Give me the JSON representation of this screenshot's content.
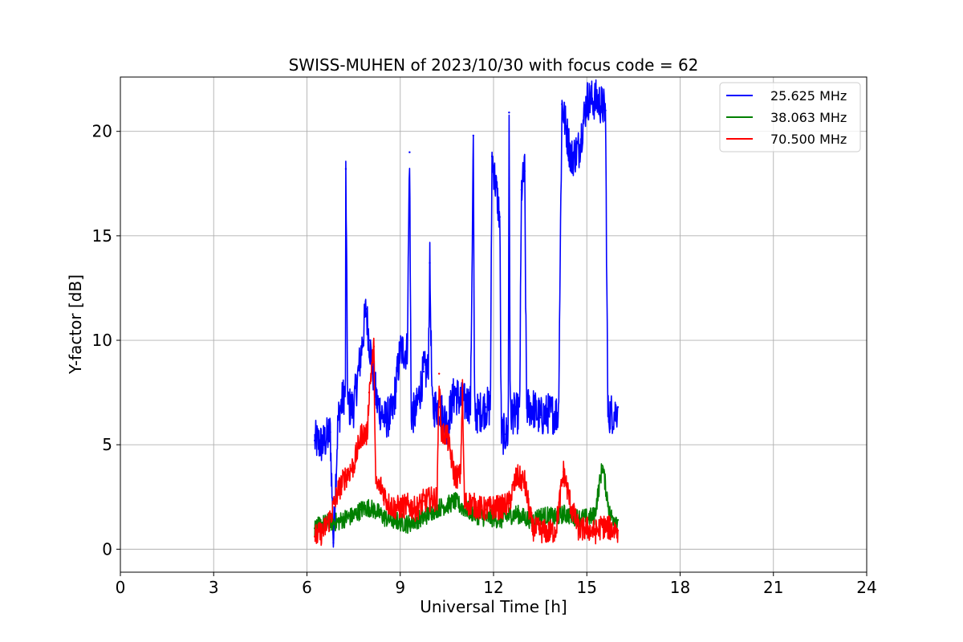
{
  "chart_data": {
    "type": "line",
    "title": "SWISS-MUHEN of 2023/10/30 with focus code = 62",
    "xlabel": "Universal Time [h]",
    "ylabel": "Y-factor [dB]",
    "xlim": [
      0,
      24
    ],
    "ylim": [
      -1.1,
      22.6
    ],
    "x_ticks": [
      0,
      3,
      6,
      9,
      12,
      15,
      18,
      21,
      24
    ],
    "y_ticks": [
      0,
      5,
      10,
      15,
      20
    ],
    "grid": true,
    "legend_position": "top-right",
    "series": [
      {
        "name": "25.625 MHz",
        "color": "#0000ff",
        "baseline": 5.5,
        "x": [
          6.25,
          6.5,
          6.75,
          6.85,
          7.0,
          7.2,
          7.25,
          7.5,
          7.75,
          7.9,
          8.0,
          8.25,
          8.5,
          8.75,
          9.0,
          9.3,
          9.5,
          9.75,
          9.95,
          10.25,
          10.5,
          10.75,
          11.0,
          11.35,
          11.5,
          11.75,
          11.95,
          12.2,
          12.4,
          12.5,
          12.65,
          12.9,
          13.0,
          13.25,
          13.5,
          13.75,
          14.2,
          14.5,
          14.75,
          15.0,
          15.35,
          15.6,
          15.9,
          16.0
        ],
        "y": [
          5.2,
          5.0,
          5.6,
          0.3,
          6.2,
          7.5,
          18.2,
          6.8,
          9.5,
          11.5,
          10.0,
          7.0,
          6.2,
          6.5,
          9.5,
          19.0,
          6.5,
          8.5,
          13.7,
          6.8,
          6.0,
          7.5,
          7.0,
          19.8,
          6.5,
          6.8,
          18.8,
          15.9,
          5.5,
          20.9,
          6.5,
          17.2,
          18.1,
          6.8,
          6.3,
          6.5,
          21.3,
          18.7,
          19.2,
          21.5,
          21.5,
          21.0,
          6.5,
          6.8
        ]
      },
      {
        "name": "38.063 MHz",
        "color": "#008000",
        "baseline": 1.3,
        "x": [
          6.25,
          6.5,
          6.75,
          7.0,
          7.25,
          7.5,
          7.75,
          8.0,
          8.25,
          8.5,
          8.75,
          9.0,
          9.25,
          9.5,
          9.75,
          10.0,
          10.25,
          10.5,
          10.75,
          11.0,
          11.25,
          11.5,
          11.75,
          12.0,
          12.25,
          12.5,
          12.75,
          13.0,
          13.25,
          13.5,
          13.75,
          14.0,
          14.25,
          14.5,
          14.75,
          15.0,
          15.25,
          15.5,
          15.75,
          16.0
        ],
        "y": [
          1.0,
          1.2,
          1.3,
          1.3,
          1.5,
          1.6,
          1.9,
          2.0,
          1.8,
          1.5,
          1.4,
          1.3,
          1.2,
          1.4,
          1.5,
          1.8,
          2.0,
          2.1,
          2.3,
          2.0,
          1.8,
          1.6,
          1.5,
          1.5,
          1.4,
          1.6,
          1.7,
          1.5,
          1.4,
          1.6,
          1.6,
          1.5,
          1.7,
          1.6,
          1.5,
          1.5,
          1.6,
          4.0,
          1.6,
          1.4
        ]
      },
      {
        "name": "70.500 MHz",
        "color": "#ff0000",
        "baseline": 1.0,
        "x": [
          6.25,
          6.5,
          6.75,
          7.0,
          7.25,
          7.5,
          7.75,
          8.0,
          8.15,
          8.4,
          8.6,
          8.8,
          9.0,
          9.25,
          9.5,
          9.75,
          10.0,
          10.25,
          10.5,
          10.75,
          11.0,
          11.25,
          11.5,
          11.75,
          12.0,
          12.25,
          12.5,
          12.75,
          13.0,
          13.25,
          13.5,
          13.75,
          14.0,
          14.25,
          14.5,
          14.75,
          15.0,
          15.25,
          15.5,
          15.75,
          16.0
        ],
        "y": [
          0.6,
          0.8,
          1.5,
          2.8,
          3.5,
          4.0,
          5.5,
          7.5,
          9.7,
          3.0,
          2.2,
          2.0,
          2.0,
          2.1,
          1.9,
          2.3,
          2.4,
          8.4,
          5.5,
          3.5,
          7.6,
          2.2,
          2.0,
          1.9,
          2.0,
          2.0,
          2.2,
          3.5,
          3.2,
          1.0,
          0.9,
          0.8,
          0.9,
          3.7,
          2.0,
          0.9,
          1.0,
          0.8,
          1.1,
          1.0,
          0.9
        ]
      }
    ]
  }
}
